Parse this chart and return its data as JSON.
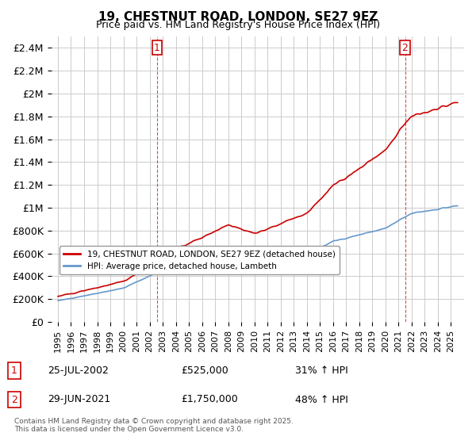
{
  "title": "19, CHESTNUT ROAD, LONDON, SE27 9EZ",
  "subtitle": "Price paid vs. HM Land Registry's House Price Index (HPI)",
  "ylabel_ticks": [
    "£0",
    "£200K",
    "£400K",
    "£600K",
    "£800K",
    "£1M",
    "£1.2M",
    "£1.4M",
    "£1.6M",
    "£1.8M",
    "£2M",
    "£2.2M",
    "£2.4M"
  ],
  "ytick_values": [
    0,
    200000,
    400000,
    600000,
    800000,
    1000000,
    1200000,
    1400000,
    1600000,
    1800000,
    2000000,
    2200000,
    2400000
  ],
  "ylim": [
    0,
    2500000
  ],
  "sale_color": "#cc0000",
  "hpi_color": "#6699cc",
  "vline_color": "#cc0000",
  "grid_color": "#cccccc",
  "background_color": "#ffffff",
  "sale1_year": 2002.57,
  "sale1_price": 525000,
  "sale1_label": "1",
  "sale2_year": 2021.49,
  "sale2_price": 1750000,
  "sale2_label": "2",
  "legend_sale_label": "19, CHESTNUT ROAD, LONDON, SE27 9EZ (detached house)",
  "legend_hpi_label": "HPI: Average price, detached house, Lambeth",
  "note1_num": "1",
  "note1_date": "25-JUL-2002",
  "note1_price": "£525,000",
  "note1_hpi": "31% ↑ HPI",
  "note2_num": "2",
  "note2_date": "29-JUN-2021",
  "note2_price": "£1,750,000",
  "note2_hpi": "48% ↑ HPI",
  "footnote": "Contains HM Land Registry data © Crown copyright and database right 2025.\nThis data is licensed under the Open Government Licence v3.0.",
  "xlim_start": 1995,
  "xlim_end": 2026,
  "xtick_years": [
    1995,
    1996,
    1997,
    1998,
    1999,
    2000,
    2001,
    2002,
    2003,
    2004,
    2005,
    2006,
    2007,
    2008,
    2009,
    2010,
    2011,
    2012,
    2013,
    2014,
    2015,
    2016,
    2017,
    2018,
    2019,
    2020,
    2021,
    2022,
    2023,
    2024,
    2025
  ]
}
